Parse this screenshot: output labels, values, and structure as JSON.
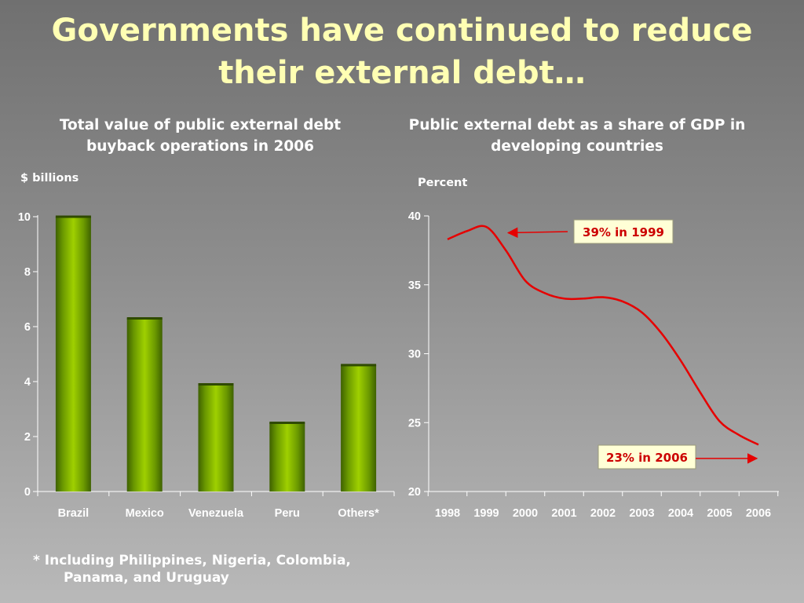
{
  "slide": {
    "title_lines": [
      "Governments have continued to reduce",
      "their external debt…"
    ],
    "footnote_lines": [
      "* Including Philippines, Nigeria, Colombia,",
      "Panama, and Uruguay"
    ]
  },
  "chart_data": [
    {
      "type": "bar",
      "title_lines": [
        "Total value of public external debt",
        "buyback operations in 2006"
      ],
      "ylabel": "$ billions",
      "categories": [
        "Brazil",
        "Mexico",
        "Venezuela",
        "Peru",
        "Others*"
      ],
      "values": [
        10.0,
        6.3,
        3.9,
        2.5,
        4.6
      ],
      "ylim": [
        0,
        10
      ],
      "yticks": [
        0,
        2,
        4,
        6,
        8,
        10
      ],
      "grid": false,
      "bar_color": "#8fc400"
    },
    {
      "type": "line",
      "title_lines": [
        "Public external debt as a share of GDP in",
        "developing countries"
      ],
      "ylabel": "Percent",
      "x": [
        1998,
        1998.5,
        1999,
        1999.5,
        2000,
        2000.5,
        2001,
        2001.5,
        2002,
        2002.5,
        2003,
        2003.5,
        2004,
        2004.5,
        2005,
        2005.5,
        2006
      ],
      "y": [
        38.3,
        38.9,
        39.2,
        37.5,
        35.3,
        34.4,
        34.0,
        34.0,
        34.1,
        33.8,
        33.0,
        31.5,
        29.5,
        27.2,
        25.1,
        24.1,
        23.4
      ],
      "xticks": [
        "1998",
        "1999",
        "2000",
        "2001",
        "2002",
        "2003",
        "2004",
        "2005",
        "2006"
      ],
      "ylim": [
        20,
        40
      ],
      "yticks": [
        20,
        25,
        30,
        35,
        40
      ],
      "grid": false,
      "line_color": "#e60000",
      "annotations": [
        {
          "text": "39% in 1999",
          "points_to_x": 1999.5,
          "points_to_y": 39.0
        },
        {
          "text": "23% in 2006",
          "points_to_x": 2006,
          "points_to_y": 22.4
        }
      ]
    }
  ]
}
